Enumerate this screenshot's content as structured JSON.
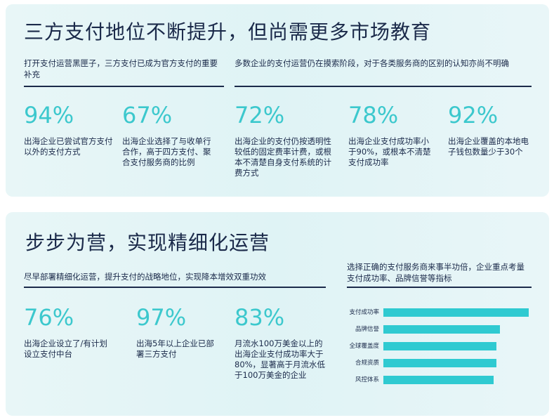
{
  "section1": {
    "title": "三方支付地位不断提升，但尚需更多市场教育",
    "left_intro": "打开支付运营黑匣子，三方支付已成为官方支付的重要补充",
    "right_intro": "多数企业的支付运营仍在摸索阶段，对于各类服务商的区别的认知亦尚不明确",
    "stats": [
      {
        "value": "94%",
        "desc": "出海企业已尝试官方支付以外的支付方式"
      },
      {
        "value": "67%",
        "desc": "出海企业选择了与收单行合作，高于四方支付、聚合支付服务商的比例"
      },
      {
        "value": "72%",
        "desc": "出海企业的支付仍按透明性较低的固定费率计费，或根本不清楚自身支付系统的计费方式"
      },
      {
        "value": "78%",
        "desc": "出海企业支付成功率小于90%，或根本不清楚支付成功率"
      },
      {
        "value": "92%",
        "desc": "出海企业覆盖的本地电子钱包数量少于30个"
      }
    ]
  },
  "section2": {
    "title": "步步为营，实现精细化运营",
    "left_intro": "尽早部署精细化运营，提升支付的战略地位，实现降本增效双重功效",
    "right_intro": "选择正确的支付服务商来事半功倍，企业重点考量支付成功率、品牌信誉等指标",
    "stats": [
      {
        "value": "76%",
        "desc": "出海企业设立了/有计划设立支付中台"
      },
      {
        "value": "97%",
        "desc": "出海5年以上企业已部署三方支付"
      },
      {
        "value": "83%",
        "desc": "月流水100万美金以上的出海企业支付成功率大于80%，显著高于月流水低于100万美金的企业"
      }
    ]
  },
  "chart_data": {
    "type": "bar",
    "orientation": "horizontal",
    "categories": [
      "支付成功率",
      "品牌信誉",
      "全球覆盖度",
      "合规资质",
      "风控体系"
    ],
    "values": [
      1.0,
      0.8,
      0.78,
      0.78,
      0.76
    ],
    "value_scale": "relative (no axis printed)",
    "bar_color": "#2fcad1",
    "grid": false,
    "legend": "none"
  },
  "colors": {
    "accent": "#3cc8cd",
    "text": "#1b2a4a",
    "card_bg": "#e4f5f6"
  }
}
